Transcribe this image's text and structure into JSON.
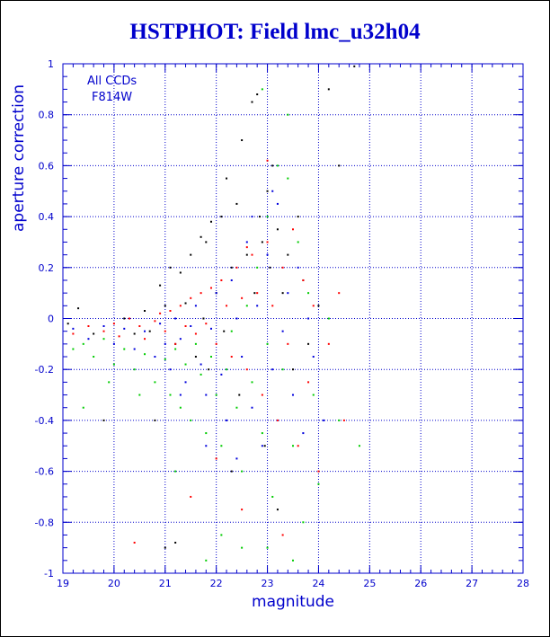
{
  "chart_data": {
    "type": "scatter",
    "title": "HSTPHOT: Field lmc_u32h04",
    "xlabel": "magnitude",
    "ylabel": "aperture correction",
    "xlim": [
      19,
      28
    ],
    "ylim": [
      -1,
      1
    ],
    "x_ticks": [
      "19",
      "20",
      "21",
      "22",
      "23",
      "24",
      "25",
      "26",
      "27",
      "28"
    ],
    "y_ticks": [
      "-1",
      "-0.8",
      "-0.6",
      "-0.4",
      "-0.2",
      "0",
      "0.2",
      "0.4",
      "0.6",
      "0.8",
      "1"
    ],
    "grid": true,
    "annotations": [
      "All CCDs",
      "F814W"
    ],
    "colors": {
      "text": "#0000cc",
      "grid": "#0000cc"
    },
    "series": [
      {
        "color": "#000000",
        "points": [
          [
            19.1,
            -0.02
          ],
          [
            19.3,
            0.04
          ],
          [
            19.6,
            -0.06
          ],
          [
            19.8,
            -0.4
          ],
          [
            20.2,
            0.0
          ],
          [
            20.4,
            -0.06
          ],
          [
            20.6,
            0.03
          ],
          [
            20.7,
            -0.05
          ],
          [
            20.9,
            0.13
          ],
          [
            21.0,
            0.05
          ],
          [
            21.1,
            0.2
          ],
          [
            21.2,
            -0.1
          ],
          [
            21.3,
            0.18
          ],
          [
            21.4,
            0.06
          ],
          [
            21.5,
            0.25
          ],
          [
            21.6,
            -0.15
          ],
          [
            21.7,
            0.32
          ],
          [
            21.75,
            0.0
          ],
          [
            21.8,
            0.3
          ],
          [
            21.85,
            -0.2
          ],
          [
            21.9,
            0.38
          ],
          [
            22.0,
            0.1
          ],
          [
            22.1,
            0.4
          ],
          [
            22.15,
            -0.05
          ],
          [
            22.2,
            0.55
          ],
          [
            22.3,
            0.2
          ],
          [
            22.4,
            0.45
          ],
          [
            22.45,
            -0.3
          ],
          [
            22.5,
            0.7
          ],
          [
            22.6,
            0.25
          ],
          [
            22.7,
            0.85
          ],
          [
            22.75,
            0.1
          ],
          [
            22.8,
            0.88
          ],
          [
            22.85,
            0.4
          ],
          [
            22.9,
            0.3
          ],
          [
            22.95,
            -0.5
          ],
          [
            23.0,
            0.5
          ],
          [
            23.05,
            0.2
          ],
          [
            23.1,
            0.6
          ],
          [
            23.2,
            0.35
          ],
          [
            23.3,
            0.1
          ],
          [
            23.4,
            0.25
          ],
          [
            23.5,
            -0.2
          ],
          [
            23.6,
            0.4
          ],
          [
            23.7,
            0.15
          ],
          [
            23.8,
            -0.1
          ],
          [
            24.0,
            0.05
          ],
          [
            24.2,
            0.9
          ],
          [
            24.4,
            0.6
          ],
          [
            24.7,
            0.99
          ],
          [
            21.2,
            -0.88
          ],
          [
            21.0,
            -0.9
          ],
          [
            22.3,
            -0.6
          ],
          [
            23.2,
            -0.75
          ],
          [
            20.8,
            -0.4
          ]
        ]
      },
      {
        "color": "#ff0000",
        "points": [
          [
            19.2,
            -0.06
          ],
          [
            19.5,
            -0.03
          ],
          [
            19.8,
            -0.05
          ],
          [
            20.0,
            -0.02
          ],
          [
            20.1,
            -0.07
          ],
          [
            20.3,
            0.0
          ],
          [
            20.5,
            -0.03
          ],
          [
            20.6,
            -0.08
          ],
          [
            20.8,
            -0.01
          ],
          [
            20.9,
            0.02
          ],
          [
            21.0,
            -0.05
          ],
          [
            21.1,
            0.03
          ],
          [
            21.2,
            -0.1
          ],
          [
            21.3,
            0.05
          ],
          [
            21.4,
            -0.03
          ],
          [
            21.5,
            0.08
          ],
          [
            21.6,
            -0.06
          ],
          [
            21.7,
            0.1
          ],
          [
            21.8,
            -0.02
          ],
          [
            21.9,
            0.12
          ],
          [
            22.0,
            -0.1
          ],
          [
            22.1,
            0.15
          ],
          [
            22.2,
            0.05
          ],
          [
            22.3,
            -0.15
          ],
          [
            22.4,
            0.2
          ],
          [
            22.5,
            0.08
          ],
          [
            22.6,
            -0.2
          ],
          [
            22.7,
            0.25
          ],
          [
            22.8,
            0.1
          ],
          [
            22.9,
            -0.3
          ],
          [
            23.0,
            0.3
          ],
          [
            23.1,
            0.05
          ],
          [
            23.2,
            -0.4
          ],
          [
            23.3,
            0.2
          ],
          [
            23.4,
            -0.1
          ],
          [
            23.5,
            0.35
          ],
          [
            23.6,
            -0.5
          ],
          [
            23.7,
            0.15
          ],
          [
            23.8,
            -0.25
          ],
          [
            23.9,
            0.05
          ],
          [
            24.0,
            -0.6
          ],
          [
            24.2,
            -0.1
          ],
          [
            24.4,
            0.1
          ],
          [
            24.5,
            -0.4
          ],
          [
            20.4,
            -0.88
          ],
          [
            21.5,
            -0.7
          ],
          [
            22.0,
            -0.55
          ],
          [
            22.5,
            -0.75
          ],
          [
            23.3,
            -0.85
          ],
          [
            23.0,
            0.62
          ],
          [
            22.6,
            0.28
          ]
        ]
      },
      {
        "color": "#00cc00",
        "points": [
          [
            19.2,
            -0.12
          ],
          [
            19.4,
            -0.1
          ],
          [
            19.6,
            -0.15
          ],
          [
            19.8,
            -0.08
          ],
          [
            20.0,
            -0.18
          ],
          [
            20.2,
            -0.12
          ],
          [
            20.4,
            -0.2
          ],
          [
            20.6,
            -0.14
          ],
          [
            20.8,
            -0.25
          ],
          [
            21.0,
            -0.16
          ],
          [
            21.1,
            -0.3
          ],
          [
            21.2,
            -0.12
          ],
          [
            21.3,
            -0.35
          ],
          [
            21.4,
            -0.18
          ],
          [
            21.5,
            -0.4
          ],
          [
            21.6,
            -0.1
          ],
          [
            21.7,
            -0.22
          ],
          [
            21.8,
            -0.45
          ],
          [
            21.9,
            -0.15
          ],
          [
            22.0,
            -0.3
          ],
          [
            22.1,
            -0.5
          ],
          [
            22.2,
            -0.2
          ],
          [
            22.3,
            -0.05
          ],
          [
            22.4,
            -0.35
          ],
          [
            22.5,
            -0.6
          ],
          [
            22.6,
            0.05
          ],
          [
            22.7,
            -0.25
          ],
          [
            22.8,
            0.2
          ],
          [
            22.9,
            -0.45
          ],
          [
            23.0,
            0.4
          ],
          [
            23.1,
            -0.7
          ],
          [
            23.2,
            0.6
          ],
          [
            23.3,
            -0.2
          ],
          [
            23.4,
            0.8
          ],
          [
            23.5,
            -0.5
          ],
          [
            23.6,
            0.3
          ],
          [
            23.7,
            -0.8
          ],
          [
            23.8,
            0.1
          ],
          [
            23.9,
            -0.3
          ],
          [
            24.0,
            -0.65
          ],
          [
            24.2,
            0.0
          ],
          [
            24.4,
            -0.4
          ],
          [
            24.8,
            -0.5
          ],
          [
            19.4,
            -0.35
          ],
          [
            19.9,
            -0.25
          ],
          [
            20.5,
            -0.3
          ],
          [
            21.8,
            -0.95
          ],
          [
            22.1,
            -0.85
          ],
          [
            22.5,
            -0.9
          ],
          [
            23.0,
            -0.9
          ],
          [
            23.5,
            -0.95
          ],
          [
            21.2,
            -0.6
          ],
          [
            22.9,
            0.9
          ],
          [
            23.4,
            0.55
          ],
          [
            23.0,
            -0.1
          ]
        ]
      },
      {
        "color": "#0000dd",
        "points": [
          [
            19.2,
            -0.04
          ],
          [
            19.5,
            -0.08
          ],
          [
            19.8,
            -0.03
          ],
          [
            20.0,
            -0.1
          ],
          [
            20.2,
            -0.04
          ],
          [
            20.4,
            -0.12
          ],
          [
            20.6,
            -0.05
          ],
          [
            20.8,
            -0.15
          ],
          [
            20.9,
            -0.02
          ],
          [
            21.0,
            -0.1
          ],
          [
            21.1,
            -0.2
          ],
          [
            21.2,
            0.0
          ],
          [
            21.3,
            -0.08
          ],
          [
            21.4,
            -0.25
          ],
          [
            21.5,
            -0.03
          ],
          [
            21.6,
            0.05
          ],
          [
            21.7,
            -0.18
          ],
          [
            21.8,
            -0.3
          ],
          [
            21.9,
            -0.04
          ],
          [
            22.0,
            0.1
          ],
          [
            22.1,
            -0.22
          ],
          [
            22.2,
            -0.4
          ],
          [
            22.3,
            0.15
          ],
          [
            22.4,
            0.0
          ],
          [
            22.5,
            -0.15
          ],
          [
            22.6,
            0.3
          ],
          [
            22.7,
            -0.35
          ],
          [
            22.8,
            0.05
          ],
          [
            22.9,
            -0.5
          ],
          [
            23.0,
            0.25
          ],
          [
            23.1,
            -0.2
          ],
          [
            23.2,
            0.45
          ],
          [
            23.3,
            -0.05
          ],
          [
            23.4,
            0.1
          ],
          [
            23.5,
            -0.3
          ],
          [
            23.6,
            0.2
          ],
          [
            23.7,
            -0.45
          ],
          [
            23.8,
            0.0
          ],
          [
            23.9,
            -0.15
          ],
          [
            24.1,
            -0.4
          ],
          [
            22.4,
            -0.55
          ],
          [
            21.8,
            -0.5
          ],
          [
            22.7,
            0.4
          ],
          [
            23.1,
            0.5
          ],
          [
            21.3,
            -0.3
          ]
        ]
      }
    ]
  }
}
